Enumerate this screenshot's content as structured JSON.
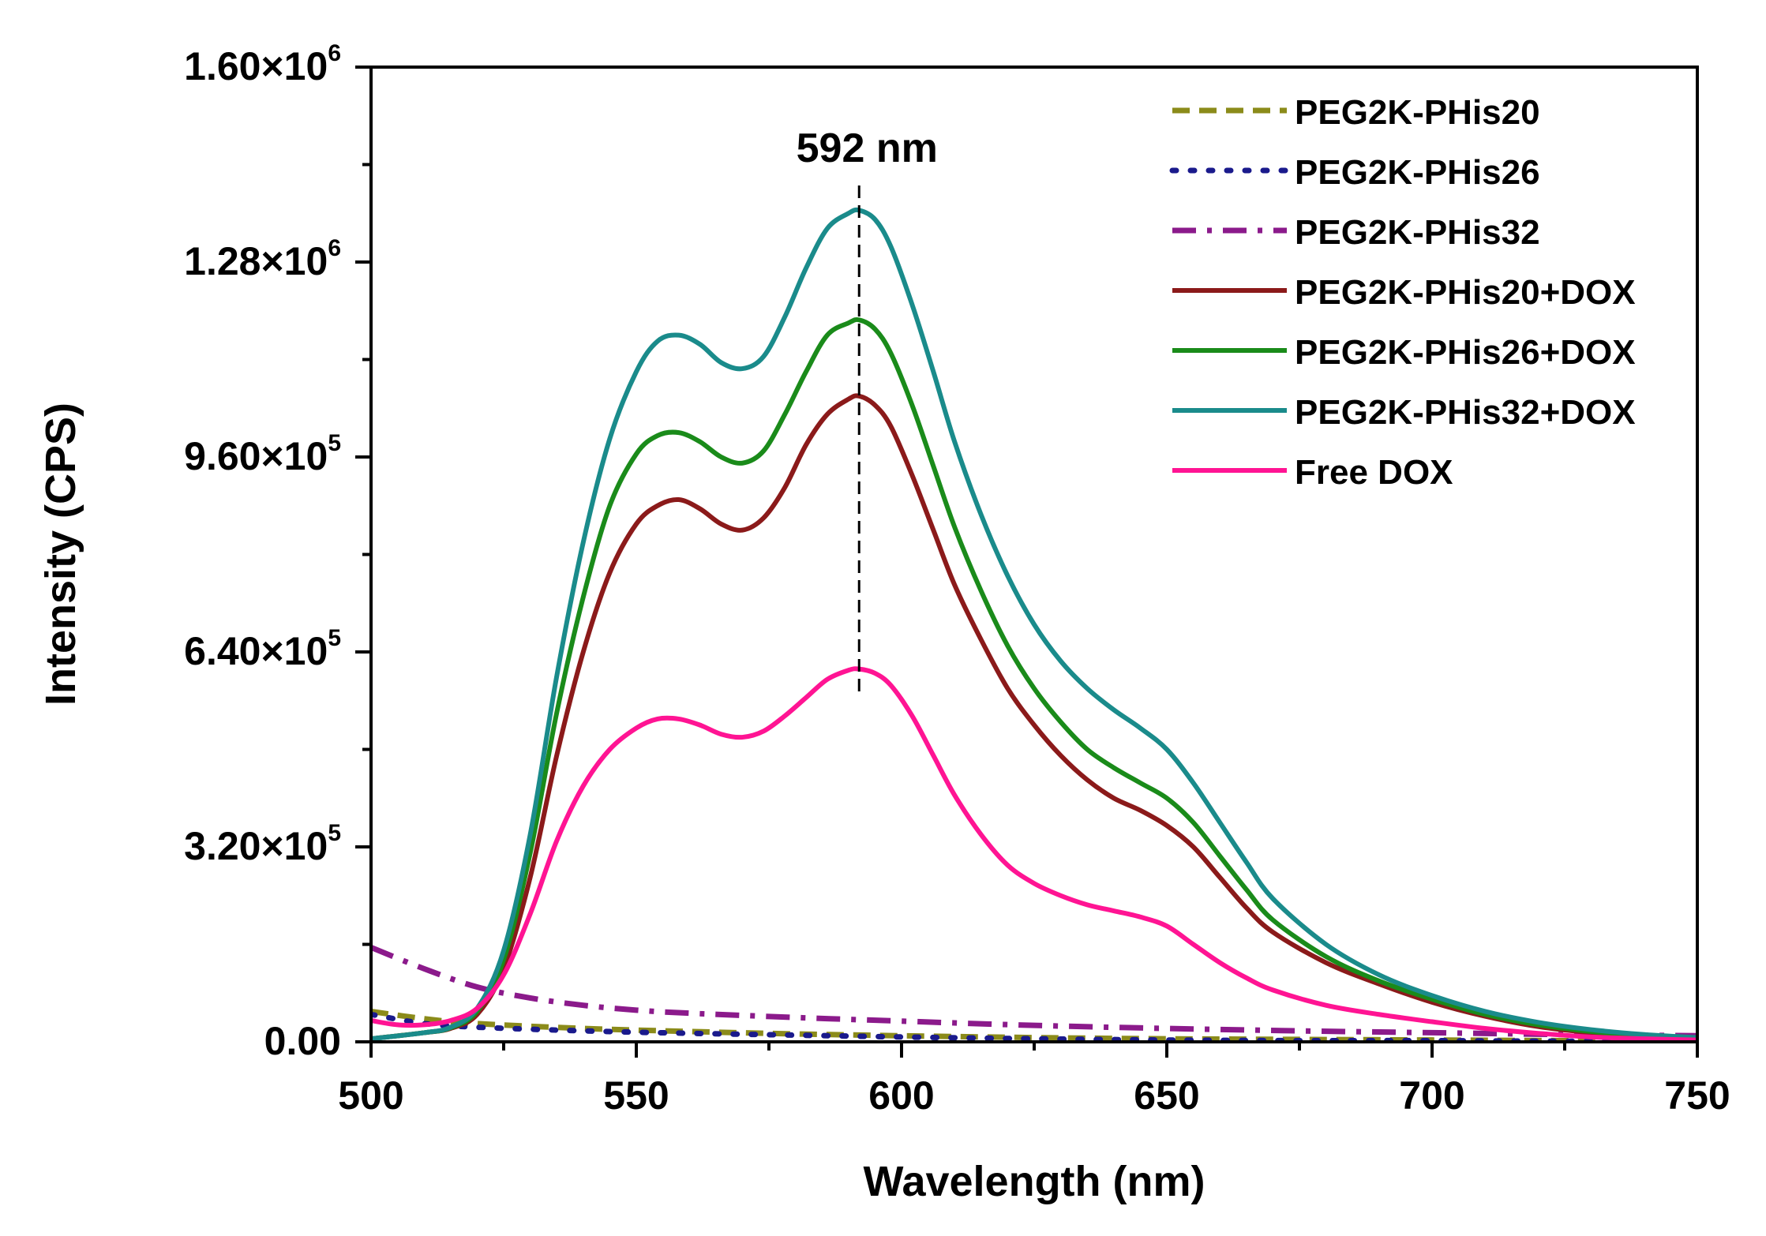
{
  "chart_data": {
    "type": "line",
    "title": "",
    "xlabel": "Wavelength (nm)",
    "ylabel": "Intensity (CPS)",
    "xlim": [
      500,
      750
    ],
    "ylim": [
      0,
      1600000
    ],
    "x_ticks": [
      500,
      550,
      600,
      650,
      700,
      750
    ],
    "x_tick_labels": [
      "500",
      "550",
      "600",
      "650",
      "700",
      "750"
    ],
    "y_ticks": [
      0,
      320000,
      640000,
      960000,
      1280000,
      1600000
    ],
    "y_tick_labels": [
      {
        "mantissa": "0.00",
        "exp": ""
      },
      {
        "mantissa": "3.20×10",
        "exp": "5"
      },
      {
        "mantissa": "6.40×10",
        "exp": "5"
      },
      {
        "mantissa": "9.60×10",
        "exp": "5"
      },
      {
        "mantissa": "1.28×10",
        "exp": "6"
      },
      {
        "mantissa": "1.60×10",
        "exp": "6"
      }
    ],
    "grid": false,
    "legend_position": "top-right",
    "annotation": {
      "text": "592 nm",
      "x": 592
    },
    "series": [
      {
        "name": "PEG2K-PHis20",
        "color": "#8b8b1a",
        "style": "dashed",
        "x": [
          500,
          510,
          520,
          540,
          560,
          580,
          600,
          625,
          650,
          675,
          700,
          725,
          750
        ],
        "y": [
          50000,
          38000,
          30000,
          22000,
          17000,
          13000,
          10000,
          7000,
          5000,
          4000,
          3000,
          2000,
          2000
        ]
      },
      {
        "name": "PEG2K-PHis26",
        "color": "#1a1a8c",
        "style": "dotted",
        "x": [
          500,
          510,
          520,
          540,
          560,
          580,
          600,
          625,
          650,
          675,
          700,
          725,
          750
        ],
        "y": [
          45000,
          30000,
          24000,
          18000,
          14000,
          11000,
          8000,
          5000,
          3000,
          2000,
          2000,
          1000,
          1000
        ]
      },
      {
        "name": "PEG2K-PHis32",
        "color": "#8b1a8b",
        "style": "dashdot",
        "x": [
          500,
          510,
          520,
          530,
          540,
          550,
          560,
          580,
          600,
          625,
          650,
          675,
          700,
          725,
          750
        ],
        "y": [
          155000,
          120000,
          90000,
          72000,
          60000,
          52000,
          47000,
          40000,
          34000,
          27000,
          22000,
          18000,
          15000,
          12000,
          10000
        ]
      },
      {
        "name": "PEG2K-PHis20+DOX",
        "color": "#8b1a1a",
        "style": "solid",
        "x": [
          500,
          510,
          515,
          520,
          525,
          530,
          535,
          540,
          545,
          550,
          554,
          558,
          562,
          566,
          570,
          574,
          578,
          582,
          586,
          590,
          592,
          595,
          598,
          602,
          606,
          610,
          615,
          620,
          625,
          630,
          635,
          640,
          645,
          650,
          655,
          660,
          665,
          670,
          680,
          690,
          700,
          710,
          720,
          730,
          740,
          750
        ],
        "y": [
          5000,
          15000,
          22000,
          45000,
          120000,
          270000,
          470000,
          640000,
          770000,
          850000,
          880000,
          890000,
          875000,
          850000,
          840000,
          860000,
          910000,
          980000,
          1030000,
          1055000,
          1060000,
          1045000,
          1010000,
          930000,
          840000,
          750000,
          660000,
          580000,
          520000,
          470000,
          430000,
          400000,
          380000,
          355000,
          320000,
          270000,
          220000,
          180000,
          130000,
          95000,
          65000,
          42000,
          25000,
          15000,
          9000,
          5000
        ]
      },
      {
        "name": "PEG2K-PHis26+DOX",
        "color": "#1a8b1a",
        "style": "solid",
        "x": [
          500,
          510,
          515,
          520,
          525,
          530,
          535,
          540,
          545,
          550,
          554,
          558,
          562,
          566,
          570,
          574,
          578,
          582,
          586,
          590,
          592,
          595,
          598,
          602,
          606,
          610,
          615,
          620,
          625,
          630,
          635,
          640,
          645,
          650,
          655,
          660,
          665,
          670,
          680,
          690,
          700,
          710,
          720,
          730,
          740,
          750
        ],
        "y": [
          5000,
          15000,
          23000,
          50000,
          135000,
          310000,
          540000,
          730000,
          880000,
          965000,
          995000,
          1000000,
          985000,
          960000,
          950000,
          970000,
          1030000,
          1100000,
          1160000,
          1180000,
          1185000,
          1170000,
          1130000,
          1045000,
          945000,
          845000,
          740000,
          650000,
          580000,
          525000,
          480000,
          450000,
          425000,
          400000,
          360000,
          305000,
          250000,
          200000,
          140000,
          100000,
          70000,
          45000,
          28000,
          17000,
          10000,
          6000
        ]
      },
      {
        "name": "PEG2K-PHis32+DOX",
        "color": "#1a8b8b",
        "style": "solid",
        "x": [
          500,
          510,
          515,
          520,
          525,
          530,
          535,
          540,
          545,
          550,
          554,
          558,
          562,
          566,
          570,
          574,
          578,
          582,
          586,
          590,
          592,
          595,
          598,
          602,
          606,
          610,
          615,
          620,
          625,
          630,
          635,
          640,
          645,
          650,
          655,
          660,
          665,
          670,
          680,
          690,
          700,
          710,
          720,
          730,
          740,
          750
        ],
        "y": [
          5000,
          15000,
          24000,
          55000,
          150000,
          340000,
          600000,
          820000,
          990000,
          1100000,
          1150000,
          1160000,
          1145000,
          1115000,
          1105000,
          1125000,
          1190000,
          1270000,
          1335000,
          1360000,
          1365000,
          1350000,
          1305000,
          1210000,
          1100000,
          985000,
          865000,
          765000,
          685000,
          625000,
          580000,
          545000,
          515000,
          480000,
          425000,
          360000,
          295000,
          235000,
          160000,
          110000,
          76000,
          50000,
          32000,
          20000,
          12000,
          7000
        ]
      },
      {
        "name": "Free DOX",
        "color": "#ff1493",
        "style": "solid",
        "x": [
          500,
          505,
          510,
          515,
          520,
          525,
          530,
          535,
          540,
          545,
          550,
          554,
          558,
          562,
          566,
          570,
          574,
          578,
          582,
          586,
          590,
          592,
          595,
          598,
          602,
          606,
          610,
          615,
          620,
          625,
          630,
          635,
          640,
          645,
          650,
          655,
          660,
          665,
          670,
          680,
          690,
          700,
          710,
          720,
          730,
          740,
          750
        ],
        "y": [
          35000,
          28000,
          28000,
          35000,
          55000,
          110000,
          210000,
          330000,
          420000,
          480000,
          515000,
          530000,
          530000,
          520000,
          505000,
          500000,
          510000,
          535000,
          565000,
          595000,
          610000,
          612000,
          605000,
          585000,
          535000,
          470000,
          405000,
          340000,
          290000,
          260000,
          240000,
          225000,
          215000,
          205000,
          190000,
          160000,
          130000,
          105000,
          85000,
          60000,
          45000,
          33000,
          22000,
          14000,
          8000,
          5000,
          3000
        ]
      }
    ]
  }
}
